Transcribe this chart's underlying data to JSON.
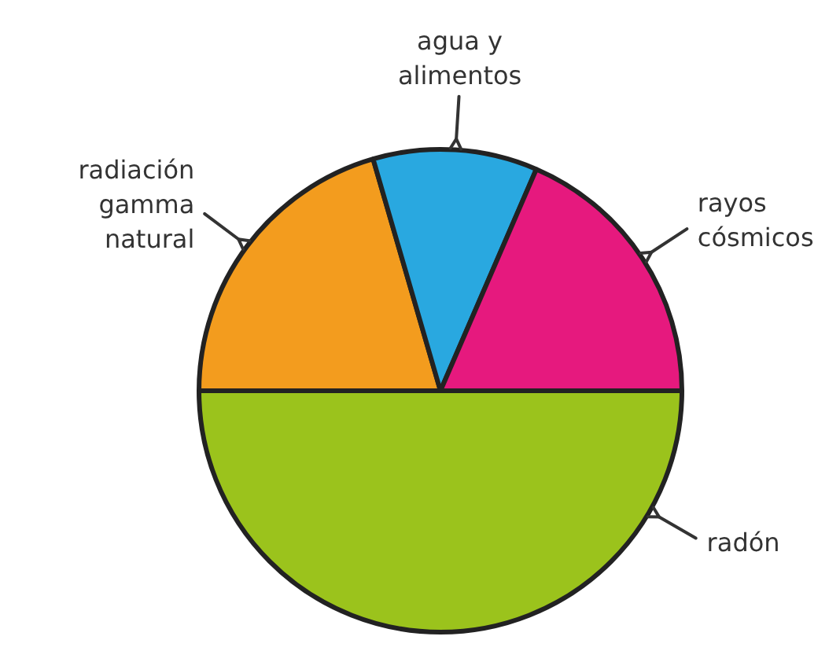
{
  "chart_data": {
    "type": "pie",
    "categories": [
      "radiación gamma natural",
      "agua y alimentos",
      "rayos cósmicos",
      "radón"
    ],
    "values": [
      20.5,
      11,
      18.5,
      50
    ],
    "colors": [
      "#f39c1e",
      "#29a8e0",
      "#e6197e",
      "#9bc31c"
    ],
    "legend": false
  }
}
